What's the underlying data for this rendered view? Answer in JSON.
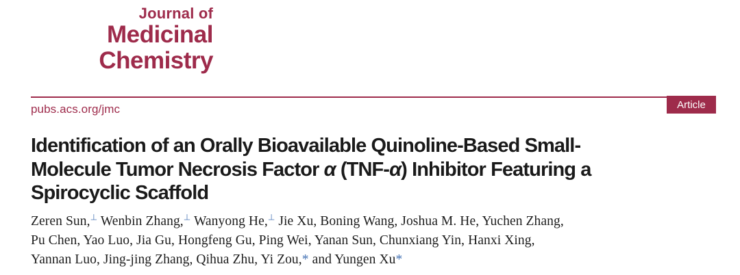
{
  "colors": {
    "accent": "#9e2b4b",
    "link": "#4472b4",
    "title_text": "#1a1a1a"
  },
  "journal": {
    "logo_top": "Journal of",
    "logo_name_line1": "Medicinal",
    "logo_name_line2": "Chemistry",
    "url": "pubs.acs.org/jmc",
    "badge_label": "Article"
  },
  "article": {
    "title_plain": "Identification of an Orally Bioavailable Quinoline-Based Small-Molecule Tumor Necrosis Factor α (TNF-α) Inhibitor Featuring a Spirocyclic Scaffold",
    "title_lines": [
      [
        {
          "t": "Identification of an Orally Bioavailable Quinoline-Based Small-"
        }
      ],
      [
        {
          "t": "Molecule Tumor Necrosis Factor "
        },
        {
          "t": "α",
          "i": true
        },
        {
          "t": " (TNF-"
        },
        {
          "t": "α",
          "i": true
        },
        {
          "t": ") Inhibitor Featuring a"
        }
      ],
      [
        {
          "t": "Spirocyclic Scaffold"
        }
      ]
    ],
    "author_lines": [
      [
        {
          "t": "Zeren Sun,"
        },
        {
          "t": "⊥",
          "sup": true,
          "link": true
        },
        {
          "t": " Wenbin Zhang,"
        },
        {
          "t": "⊥",
          "sup": true,
          "link": true
        },
        {
          "t": " Wanyong He,"
        },
        {
          "t": "⊥",
          "sup": true,
          "link": true
        },
        {
          "t": " Jie Xu, Boning Wang, Joshua M. He, Yuchen Zhang,"
        }
      ],
      [
        {
          "t": "Pu Chen, Yao Luo, Jia Gu, Hongfeng Gu, Ping Wei, Yanan Sun, Chunxiang Yin, Hanxi Xing,"
        }
      ],
      [
        {
          "t": "Yannan Luo, Jing-jing Zhang, Qihua Zhu, Yi Zou,"
        },
        {
          "t": "*",
          "link": true
        },
        {
          "t": " and Yungen Xu"
        },
        {
          "t": "*",
          "link": true
        }
      ]
    ]
  }
}
